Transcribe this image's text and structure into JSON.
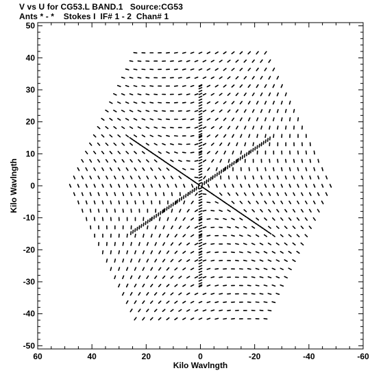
{
  "header": {
    "line1": "V vs U for CG53.L BAND.1   Source:CG53",
    "line2": "Ants * - *    Stokes I  IF# 1 - 2  Chan# 1"
  },
  "chart_data": {
    "type": "scatter",
    "xlabel": "Kilo Wavlngth",
    "ylabel": "Kilo Wavlngth",
    "xlim": [
      60,
      -60
    ],
    "ylim": [
      -51,
      51
    ],
    "x_ticks": [
      60,
      40,
      20,
      0,
      -20,
      -40,
      -60
    ],
    "y_ticks": [
      50,
      40,
      30,
      20,
      10,
      0,
      -10,
      -20,
      -30,
      -40,
      -50
    ],
    "x_tick_labels": [
      "60",
      "40",
      "20",
      "0",
      "-20",
      "-40",
      "-60"
    ],
    "y_tick_labels": [
      "50",
      "40",
      "30",
      "20",
      "10",
      "0",
      "-10",
      "-20",
      "-30",
      "-40",
      "-50"
    ],
    "pattern": "six-armed hexagonal uv-coverage (Y-shaped array snapshots)",
    "arm_angles_deg": [
      90,
      30,
      -30,
      -90,
      -150,
      150
    ],
    "max_radius_klambda": 48,
    "grid": false,
    "marker_color": "#000000"
  }
}
